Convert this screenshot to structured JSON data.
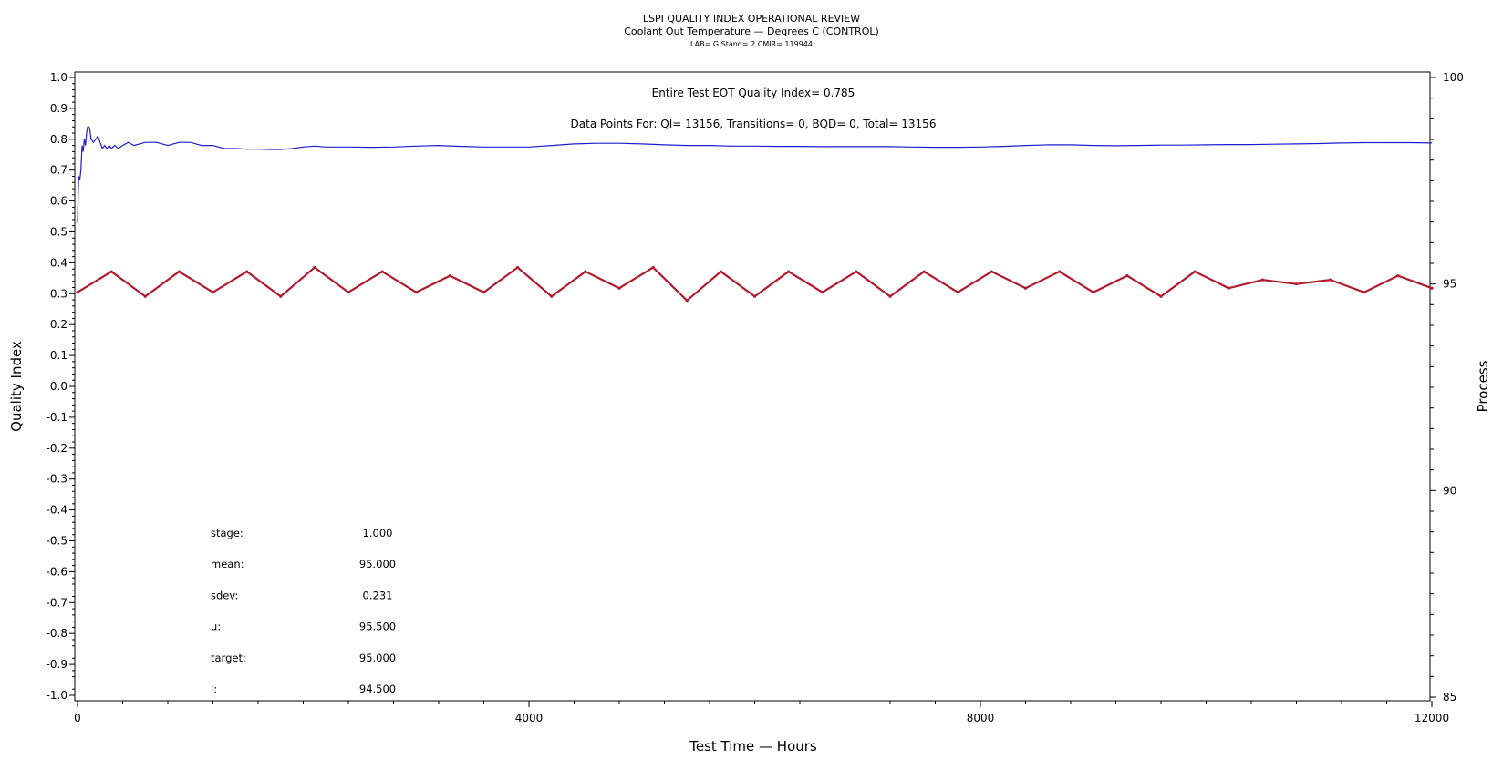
{
  "chart_data": {
    "type": "line",
    "title": "LSPI QUALITY INDEX OPERATIONAL REVIEW",
    "subtitle": "Coolant Out Temperature — Degrees C (CONTROL)",
    "subtitle2": "LAB= G Stand= 2 CMIR= 119944",
    "xlabel": "Test Time — Hours",
    "ylabel": "Quality Index",
    "y2label": "Process",
    "xlim": [
      0,
      12000
    ],
    "ylim": [
      -1.0,
      1.0
    ],
    "y2lim": [
      85,
      100
    ],
    "x_ticks": [
      0,
      4000,
      8000,
      12000
    ],
    "y_ticks": [
      "1.0",
      "0.9",
      "0.8",
      "0.7",
      "0.6",
      "0.5",
      "0.4",
      "0.3",
      "0.2",
      "0.1",
      "0.0",
      "-0.1",
      "-0.2",
      "-0.3",
      "-0.4",
      "-0.5",
      "-0.6",
      "-0.7",
      "-0.8",
      "-0.9",
      "-1.0"
    ],
    "y2_ticks": [
      100,
      95,
      90,
      85
    ],
    "annotations": {
      "quality_index": "Entire Test EOT Quality Index=   0.785",
      "data_points": "Data Points For: QI= 13156, Transitions=     0, BQD=     0, Total= 13156"
    },
    "stats": [
      {
        "label": "stage:",
        "value": "1.000"
      },
      {
        "label": "mean:",
        "value": "95.000"
      },
      {
        "label": "sdev:",
        "value": "0.231"
      },
      {
        "label": "u:",
        "value": "95.500"
      },
      {
        "label": "target:",
        "value": "95.000"
      },
      {
        "label": "l:",
        "value": "94.500"
      }
    ],
    "series": [
      {
        "axis": "left",
        "color": "#1f1fd0",
        "x": [
          0,
          10,
          20,
          30,
          40,
          50,
          60,
          70,
          80,
          90,
          100,
          110,
          120,
          140,
          160,
          180,
          200,
          220,
          240,
          260,
          280,
          300,
          330,
          360,
          400,
          450,
          500,
          600,
          700,
          800,
          900,
          1000,
          1100,
          1200,
          1300,
          1400,
          1500,
          1600,
          1700,
          1800,
          1900,
          2000,
          2100,
          2200,
          2400,
          2600,
          2800,
          3000,
          3200,
          3400,
          3600,
          3800,
          4000,
          4200,
          4400,
          4600,
          4800,
          5000,
          5200,
          5400,
          5600,
          5800,
          6000,
          6200,
          6400,
          6600,
          6800,
          7000,
          7200,
          7400,
          7600,
          7800,
          8000,
          8200,
          8400,
          8600,
          8800,
          9000,
          9200,
          9400,
          9600,
          9800,
          10000,
          10200,
          10400,
          10600,
          10800,
          11000,
          11200,
          11400,
          11600,
          11800,
          12000
        ],
        "values": [
          0.53,
          0.68,
          0.67,
          0.7,
          0.78,
          0.76,
          0.8,
          0.78,
          0.82,
          0.84,
          0.84,
          0.83,
          0.8,
          0.79,
          0.8,
          0.81,
          0.79,
          0.77,
          0.78,
          0.77,
          0.78,
          0.77,
          0.78,
          0.77,
          0.78,
          0.79,
          0.78,
          0.79,
          0.79,
          0.78,
          0.79,
          0.79,
          0.78,
          0.78,
          0.77,
          0.77,
          0.768,
          0.768,
          0.767,
          0.767,
          0.77,
          0.775,
          0.778,
          0.775,
          0.775,
          0.774,
          0.775,
          0.778,
          0.78,
          0.777,
          0.775,
          0.775,
          0.775,
          0.78,
          0.785,
          0.787,
          0.787,
          0.785,
          0.782,
          0.78,
          0.78,
          0.778,
          0.778,
          0.777,
          0.777,
          0.776,
          0.776,
          0.776,
          0.776,
          0.775,
          0.774,
          0.774,
          0.775,
          0.777,
          0.78,
          0.782,
          0.782,
          0.78,
          0.779,
          0.78,
          0.781,
          0.781,
          0.782,
          0.783,
          0.783,
          0.784,
          0.785,
          0.786,
          0.788,
          0.789,
          0.789,
          0.789,
          0.788
        ]
      },
      {
        "axis": "right",
        "color": "#b01c2e",
        "x": [
          0,
          300,
          600,
          900,
          1200,
          1500,
          1800,
          2100,
          2400,
          2700,
          3000,
          3300,
          3600,
          3900,
          4200,
          4500,
          4800,
          5100,
          5400,
          5700,
          6000,
          6300,
          6600,
          6900,
          7200,
          7500,
          7800,
          8100,
          8400,
          8700,
          9000,
          9300,
          9600,
          9900,
          10200,
          10500,
          10800,
          11100,
          11400,
          11700,
          12000
        ],
        "values": [
          94.8,
          95.3,
          94.7,
          95.3,
          94.8,
          95.3,
          94.7,
          95.4,
          94.8,
          95.3,
          94.8,
          95.2,
          94.8,
          95.4,
          94.7,
          95.3,
          94.9,
          95.4,
          94.6,
          95.3,
          94.7,
          95.3,
          94.8,
          95.3,
          94.7,
          95.3,
          94.8,
          95.3,
          94.9,
          95.3,
          94.8,
          95.2,
          94.7,
          95.3,
          94.9,
          95.1,
          95.0,
          95.1,
          94.8,
          95.2,
          94.9
        ]
      }
    ],
    "grid": false,
    "legend": "none"
  }
}
